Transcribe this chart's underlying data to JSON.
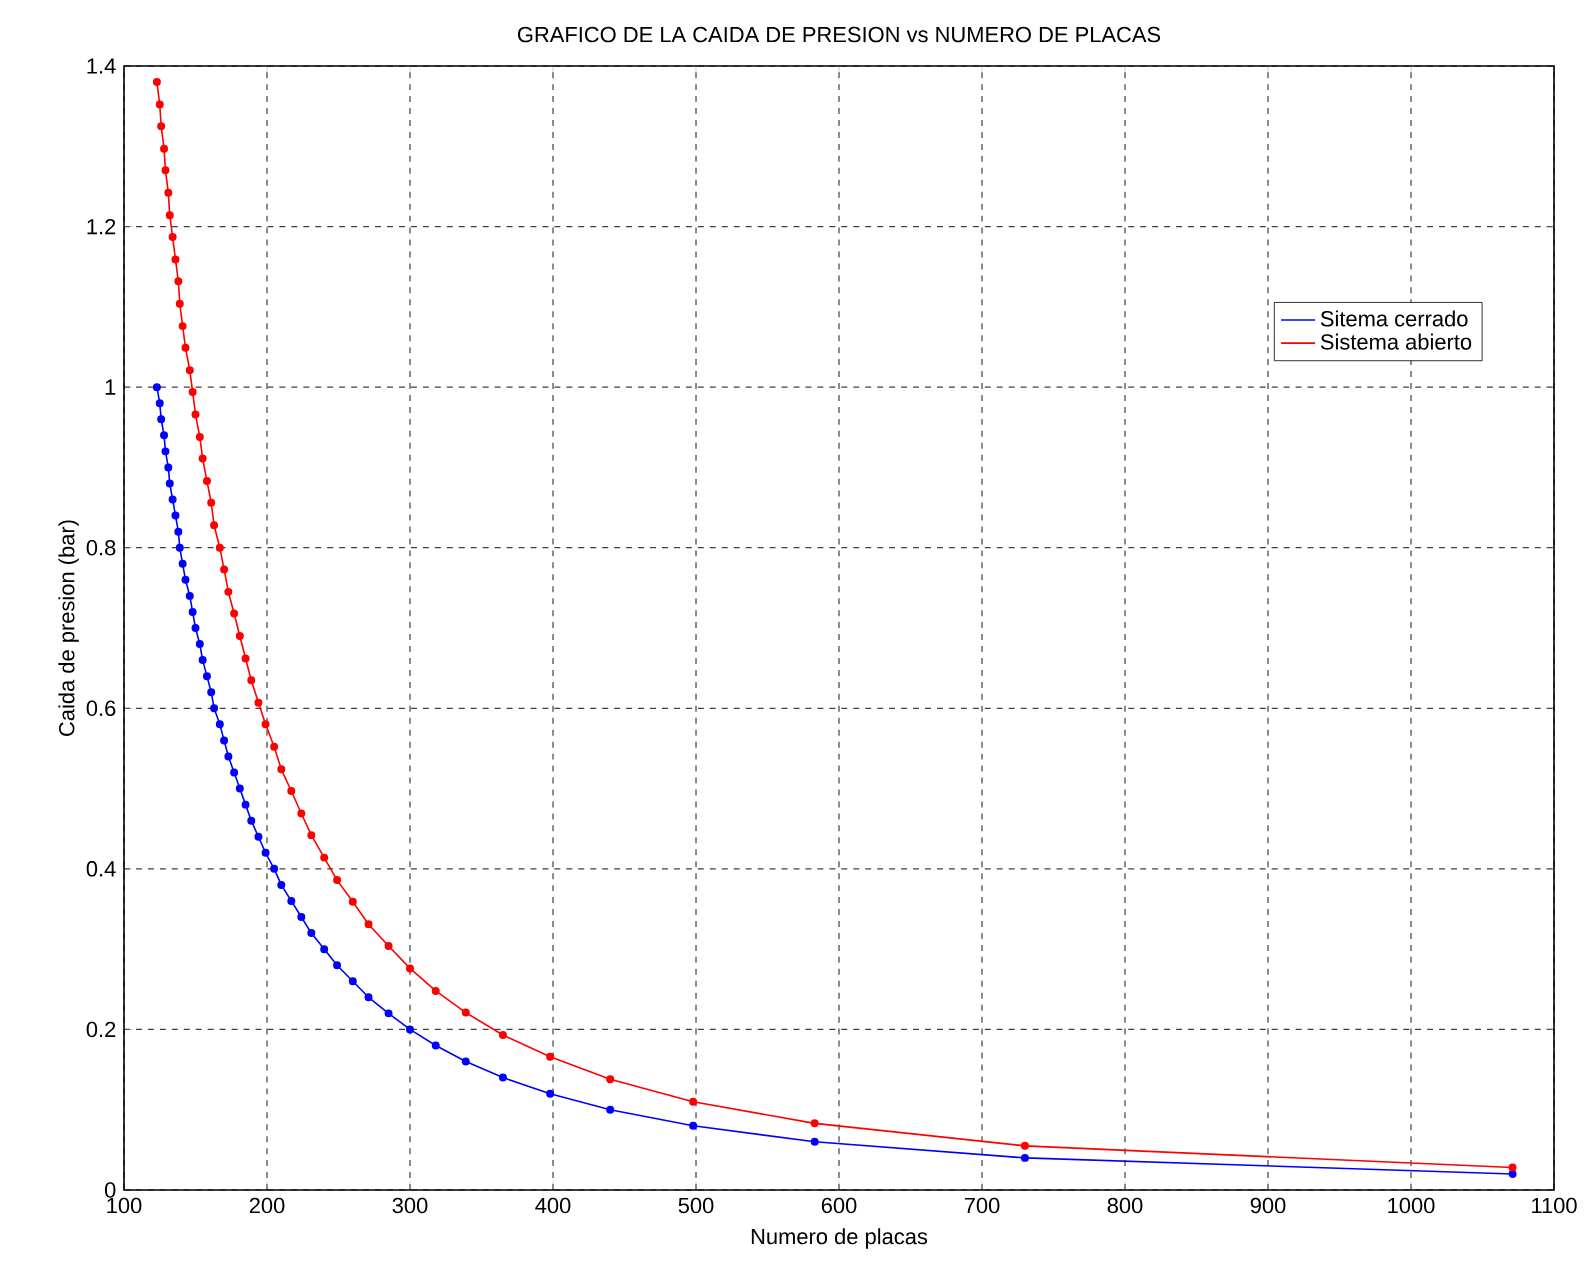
{
  "chart_data": {
    "type": "line",
    "title": "GRAFICO DE LA CAIDA DE PRESION vs NUMERO DE PLACAS",
    "xlabel": "Numero de placas",
    "ylabel": "Caida de presion (bar)",
    "x": [
      123,
      125,
      126,
      128,
      129,
      131,
      132,
      134,
      136,
      138,
      139,
      141,
      143,
      146,
      148,
      150,
      153,
      155,
      158,
      161,
      163,
      167,
      170,
      173,
      177,
      181,
      185,
      189,
      194,
      199,
      205,
      210,
      217,
      224,
      231,
      240,
      249,
      260,
      271,
      285,
      300,
      318,
      339,
      365,
      398,
      440,
      498,
      583,
      730,
      1071
    ],
    "series": [
      {
        "name": "Sitema cerrado",
        "color": "#0000ff",
        "values": [
          1.0,
          0.98,
          0.96,
          0.94,
          0.92,
          0.9,
          0.88,
          0.86,
          0.84,
          0.82,
          0.8,
          0.78,
          0.76,
          0.74,
          0.72,
          0.7,
          0.68,
          0.66,
          0.64,
          0.62,
          0.6,
          0.58,
          0.56,
          0.54,
          0.52,
          0.5,
          0.48,
          0.46,
          0.44,
          0.42,
          0.4,
          0.38,
          0.36,
          0.34,
          0.32,
          0.3,
          0.28,
          0.26,
          0.24,
          0.22,
          0.2,
          0.18,
          0.16,
          0.14,
          0.12,
          0.1,
          0.08,
          0.06,
          0.04,
          0.02
        ]
      },
      {
        "name": "Sistema abierto",
        "color": "#ff0000",
        "values": [
          1.38,
          1.352,
          1.325,
          1.297,
          1.27,
          1.242,
          1.214,
          1.187,
          1.159,
          1.132,
          1.104,
          1.076,
          1.049,
          1.021,
          0.994,
          0.966,
          0.938,
          0.911,
          0.883,
          0.856,
          0.828,
          0.8,
          0.773,
          0.745,
          0.718,
          0.69,
          0.662,
          0.635,
          0.607,
          0.58,
          0.552,
          0.524,
          0.497,
          0.469,
          0.442,
          0.414,
          0.386,
          0.359,
          0.331,
          0.304,
          0.276,
          0.248,
          0.221,
          0.193,
          0.166,
          0.138,
          0.11,
          0.083,
          0.055,
          0.028
        ]
      }
    ],
    "xlim": [
      100,
      1100
    ],
    "xticks": [
      100,
      200,
      300,
      400,
      500,
      600,
      700,
      800,
      900,
      1000,
      1100
    ],
    "ylim": [
      0,
      1.4
    ],
    "yticks": [
      0,
      0.2,
      0.4,
      0.6,
      0.8,
      1,
      1.2,
      1.4
    ],
    "grid": true,
    "legend": "top right",
    "marker": "circle",
    "line_style": "solid"
  }
}
